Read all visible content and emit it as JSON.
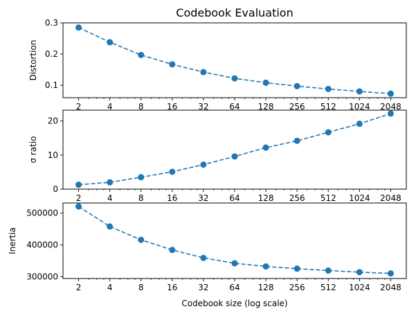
{
  "title": "Codebook Evaluation",
  "xlabel": "Codebook size (log scale)",
  "colors": {
    "series": "#1f77b4",
    "axis": "#000000",
    "background": "#ffffff"
  },
  "chart_data": [
    {
      "type": "line",
      "title": "Codebook Evaluation",
      "xlabel": "",
      "ylabel": "Distortion",
      "xscale": "log2",
      "grid": false,
      "line_style": "dashed",
      "marker": "circle",
      "x": [
        2,
        4,
        8,
        16,
        32,
        64,
        128,
        256,
        512,
        1024,
        2048
      ],
      "x_tick_labels": [
        "2",
        "4",
        "8",
        "16",
        "32",
        "64",
        "128",
        "256",
        "512",
        "1024",
        "2048"
      ],
      "values": [
        0.285,
        0.238,
        0.197,
        0.167,
        0.142,
        0.122,
        0.108,
        0.097,
        0.088,
        0.08,
        0.073
      ],
      "ylim": [
        0.06,
        0.3
      ],
      "y_ticks": [
        0.1,
        0.2,
        0.3
      ],
      "y_tick_labels": [
        "0.1",
        "0.2",
        "0.3"
      ]
    },
    {
      "type": "line",
      "title": "",
      "xlabel": "",
      "ylabel": "σ ratio",
      "xscale": "log2",
      "grid": false,
      "line_style": "dashed",
      "marker": "circle",
      "x": [
        2,
        4,
        8,
        16,
        32,
        64,
        128,
        256,
        512,
        1024,
        2048
      ],
      "x_tick_labels": [
        "2",
        "4",
        "8",
        "16",
        "32",
        "64",
        "128",
        "256",
        "512",
        "1024",
        "2048"
      ],
      "values": [
        1.3,
        2.0,
        3.5,
        5.1,
        7.2,
        9.6,
        12.2,
        14.2,
        16.7,
        19.2,
        22.2
      ],
      "ylim": [
        0,
        23.2
      ],
      "y_ticks": [
        0,
        10,
        20
      ],
      "y_tick_labels": [
        "0",
        "10",
        "20"
      ]
    },
    {
      "type": "line",
      "title": "",
      "xlabel": "Codebook size (log scale)",
      "ylabel": "Inertia",
      "xscale": "log2",
      "grid": false,
      "line_style": "dashed",
      "marker": "circle",
      "x": [
        2,
        4,
        8,
        16,
        32,
        64,
        128,
        256,
        512,
        1024,
        2048
      ],
      "x_tick_labels": [
        "2",
        "4",
        "8",
        "16",
        "32",
        "64",
        "128",
        "256",
        "512",
        "1024",
        "2048"
      ],
      "values": [
        521000,
        458000,
        416000,
        384000,
        359000,
        342000,
        332000,
        325000,
        319000,
        314000,
        310000
      ],
      "ylim": [
        294000,
        532000
      ],
      "y_ticks": [
        300000,
        400000,
        500000
      ],
      "y_tick_labels": [
        "300000",
        "400000",
        "500000"
      ]
    }
  ]
}
